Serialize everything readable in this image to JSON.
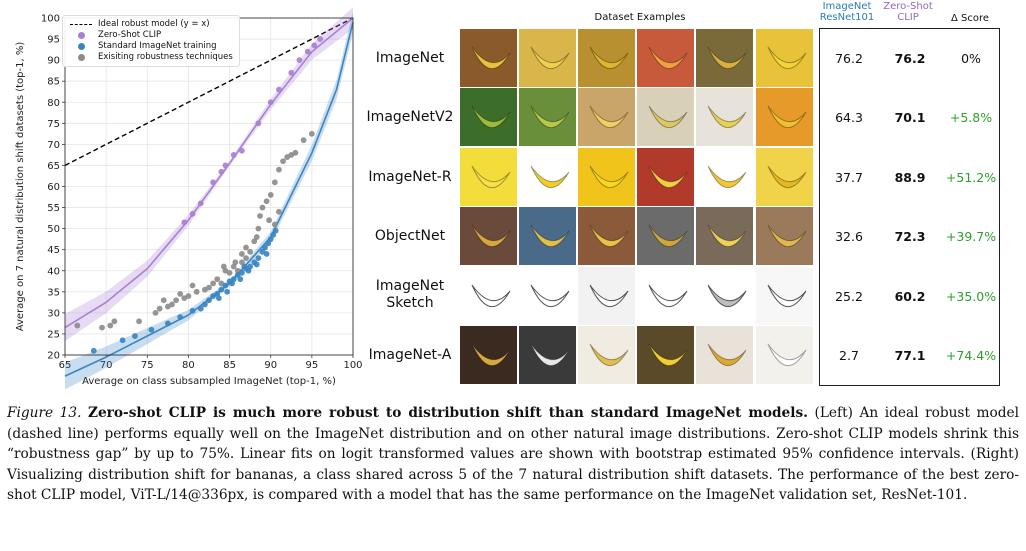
{
  "chart_data": {
    "type": "scatter",
    "title": "",
    "xlabel": "Average on class subsampled ImageNet (top-1, %)",
    "ylabel": "Average on 7 natural distribution shift datasets (top-1, %)",
    "xlim": [
      65,
      100
    ],
    "ylim": [
      20,
      100
    ],
    "xticks": [
      "65",
      "70",
      "75",
      "80",
      "85",
      "90",
      "95",
      "100"
    ],
    "yticks": [
      "20",
      "25",
      "30",
      "35",
      "40",
      "45",
      "50",
      "55",
      "60",
      "65",
      "70",
      "75",
      "80",
      "85",
      "90",
      "95",
      "100"
    ],
    "grid": true,
    "legend_position": "top-left",
    "series": [
      {
        "name": "Ideal robust model (y = x)",
        "kind": "line",
        "color": "#000000",
        "dashed": true,
        "points": [
          [
            65,
            65
          ],
          [
            100,
            100
          ]
        ]
      },
      {
        "name": "Zero-Shot CLIP",
        "kind": "scatter",
        "color": "#a97fd6",
        "fit": [
          [
            65,
            26.5
          ],
          [
            70,
            32.5
          ],
          [
            75,
            40.5
          ],
          [
            80,
            52
          ],
          [
            85,
            65.5
          ],
          [
            90,
            79.5
          ],
          [
            95,
            92
          ],
          [
            100,
            100
          ]
        ],
        "points": [
          [
            79.5,
            51.5
          ],
          [
            80.5,
            53.5
          ],
          [
            81.5,
            56
          ],
          [
            83,
            61
          ],
          [
            84,
            63.5
          ],
          [
            84.5,
            65
          ],
          [
            85.5,
            67.5
          ],
          [
            86.5,
            68.5
          ],
          [
            88.5,
            75
          ],
          [
            90,
            80
          ],
          [
            91,
            83
          ],
          [
            92.5,
            87
          ],
          [
            93.5,
            90
          ],
          [
            94.5,
            92
          ],
          [
            95.3,
            93.5
          ],
          [
            96,
            95
          ]
        ]
      },
      {
        "name": "Standard ImageNet training",
        "kind": "scatter",
        "color": "#3a86c4",
        "fit": [
          [
            65,
            15
          ],
          [
            70,
            19.5
          ],
          [
            75,
            24.5
          ],
          [
            80,
            29.5
          ],
          [
            85,
            37
          ],
          [
            90,
            48
          ],
          [
            95,
            68
          ],
          [
            98,
            83
          ],
          [
            100,
            99
          ]
        ],
        "points": [
          [
            68.5,
            21
          ],
          [
            72,
            23.5
          ],
          [
            73.5,
            24.5
          ],
          [
            75.5,
            26
          ],
          [
            77.5,
            27.5
          ],
          [
            79,
            29
          ],
          [
            80.5,
            30.5
          ],
          [
            81.5,
            31
          ],
          [
            82.5,
            33
          ],
          [
            83,
            34
          ],
          [
            83.5,
            34.5
          ],
          [
            84,
            35.5
          ],
          [
            84.5,
            36.5
          ],
          [
            85,
            37.5
          ],
          [
            85.5,
            38
          ],
          [
            86,
            39
          ],
          [
            86.5,
            39.5
          ],
          [
            87,
            40.5
          ],
          [
            87.5,
            41
          ],
          [
            88,
            42
          ],
          [
            88.5,
            43
          ],
          [
            89,
            44.5
          ],
          [
            89.3,
            45.5
          ],
          [
            89.7,
            46.5
          ],
          [
            90,
            47.5
          ],
          [
            90.3,
            48.5
          ],
          [
            90.6,
            49.5
          ],
          [
            85.3,
            37
          ],
          [
            86.3,
            38
          ],
          [
            87.3,
            40
          ],
          [
            88.3,
            41.5
          ],
          [
            84.7,
            35
          ],
          [
            86.8,
            41
          ],
          [
            89.5,
            44
          ],
          [
            83.7,
            33.5
          ],
          [
            82,
            32
          ]
        ]
      },
      {
        "name": "Exisiting robustness techniques",
        "kind": "scatter",
        "color": "#8c8c8c",
        "points": [
          [
            66.5,
            27
          ],
          [
            69.5,
            26.5
          ],
          [
            70.5,
            27
          ],
          [
            71,
            28
          ],
          [
            76,
            30
          ],
          [
            77.5,
            31.5
          ],
          [
            78,
            32
          ],
          [
            78.5,
            33
          ],
          [
            79.5,
            33.5
          ],
          [
            80,
            34
          ],
          [
            81,
            35
          ],
          [
            82,
            35.5
          ],
          [
            82.5,
            36
          ],
          [
            83,
            37
          ],
          [
            83.5,
            38
          ],
          [
            84,
            37
          ],
          [
            84.5,
            40
          ],
          [
            85,
            39.5
          ],
          [
            85.5,
            41
          ],
          [
            86,
            40
          ],
          [
            86.5,
            42
          ],
          [
            87,
            43
          ],
          [
            87.5,
            44.5
          ],
          [
            88,
            47
          ],
          [
            88.3,
            48
          ],
          [
            88.7,
            53
          ],
          [
            89,
            55
          ],
          [
            89.5,
            56.5
          ],
          [
            90,
            58
          ],
          [
            90.5,
            61
          ],
          [
            91,
            64
          ],
          [
            91.5,
            66
          ],
          [
            92,
            67
          ],
          [
            92.5,
            67.5
          ],
          [
            93,
            68
          ],
          [
            94,
            71
          ],
          [
            95,
            72.5
          ],
          [
            90.5,
            51
          ],
          [
            91,
            54
          ],
          [
            89.8,
            52
          ],
          [
            88.5,
            50
          ],
          [
            87,
            45.5
          ],
          [
            86.5,
            44
          ],
          [
            85.7,
            42
          ],
          [
            84.3,
            41
          ],
          [
            80.5,
            36.5
          ],
          [
            79,
            34.5
          ],
          [
            77,
            33
          ],
          [
            76.5,
            31
          ],
          [
            74,
            28
          ]
        ]
      }
    ]
  },
  "table": {
    "header_examples": "Dataset Examples",
    "header_resnet": "ImageNet\nResNet101",
    "header_clip": "Zero-Shot\nCLIP",
    "header_delta": "Δ Score",
    "colors": {
      "resnet_header": "#2c7bb6",
      "clip_header": "#9467bd",
      "delta": "#2ca02c"
    },
    "rows": [
      {
        "name": "ImageNet",
        "resnet": "76.2",
        "clip": "76.2",
        "delta": "0%"
      },
      {
        "name": "ImageNetV2",
        "resnet": "64.3",
        "clip": "70.1",
        "delta": "+5.8%"
      },
      {
        "name": "ImageNet-R",
        "resnet": "37.7",
        "clip": "88.9",
        "delta": "+51.2%"
      },
      {
        "name": "ObjectNet",
        "resnet": "32.6",
        "clip": "72.3",
        "delta": "+39.7%"
      },
      {
        "name": "ImageNet\nSketch",
        "resnet": "25.2",
        "clip": "60.2",
        "delta": "+35.0%"
      },
      {
        "name": "ImageNet-A",
        "resnet": "2.7",
        "clip": "77.1",
        "delta": "+74.4%"
      }
    ]
  },
  "caption": {
    "figure_label": "Figure 13.",
    "title": "Zero-shot CLIP is much more robust to distribution shift than standard ImageNet models.",
    "body": "(Left) An ideal robust model (dashed line) performs equally well on the ImageNet distribution and on other natural image distributions. Zero-shot CLIP models shrink this “robustness gap” by up to 75%. Linear fits on logit transformed values are shown with bootstrap estimated 95% confidence intervals. (Right) Visualizing distribution shift for bananas, a class shared across 5 of the 7 natural distribution shift datasets. The performance of the best zero-shot CLIP model, ViT-L/14@336px, is compared with a model that has the same performance on the ImageNet validation set, ResNet-101."
  }
}
